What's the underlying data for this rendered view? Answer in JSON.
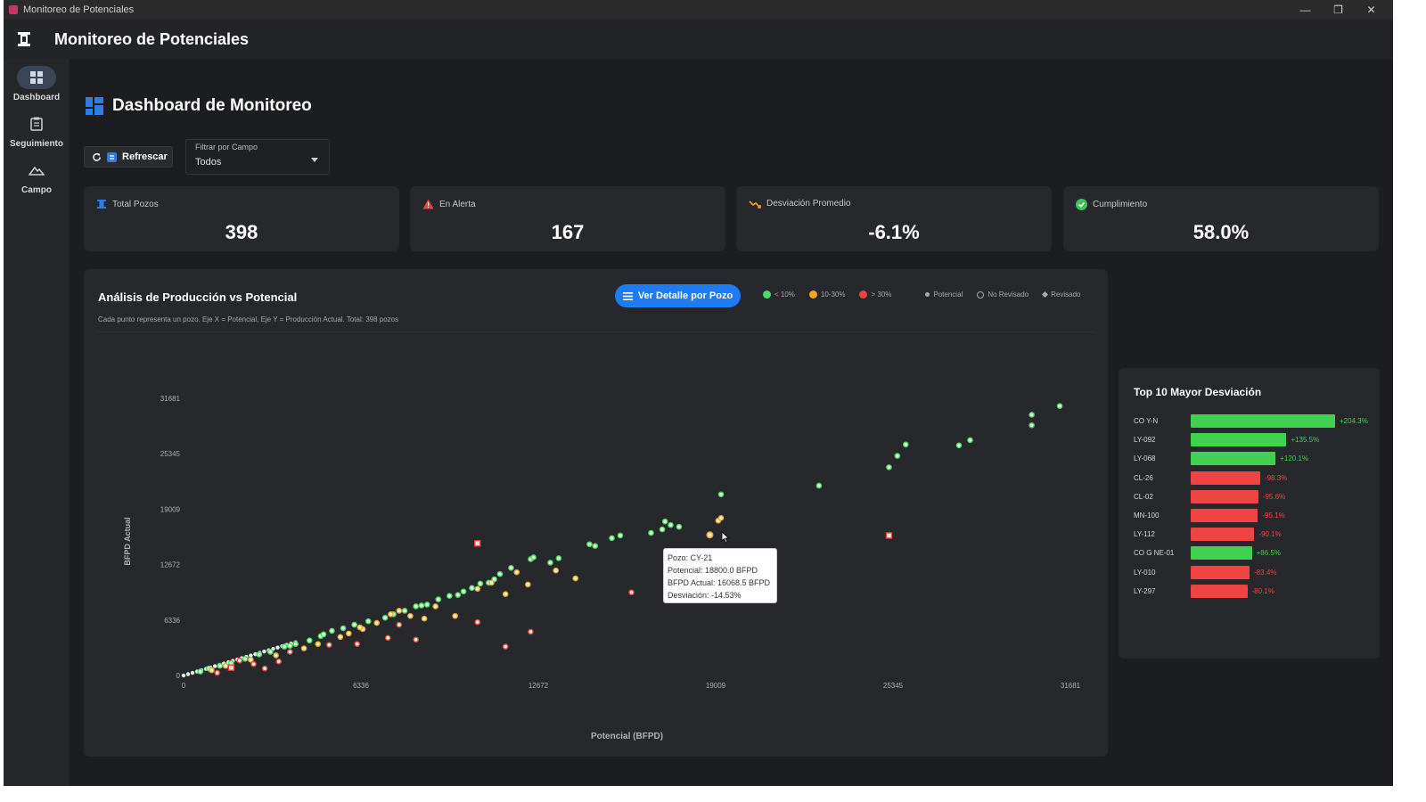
{
  "window": {
    "title": "Monitoreo de Potenciales",
    "controls": [
      "—",
      "❐",
      "✕"
    ]
  },
  "app": {
    "title": "Monitoreo de Potenciales"
  },
  "sidebar": {
    "items": [
      {
        "label": "Dashboard",
        "icon": "dashboard-icon"
      },
      {
        "label": "Seguimiento",
        "icon": "clipboard-icon"
      },
      {
        "label": "Campo",
        "icon": "mountain-icon"
      }
    ]
  },
  "page": {
    "title": "Dashboard de Monitoreo"
  },
  "toolbar": {
    "refresh_label": "Refrescar",
    "filter_label": "Filtrar por Campo",
    "filter_value": "Todos"
  },
  "stats": [
    {
      "label": "Total Pozos",
      "value": "398",
      "icon": "well-icon",
      "color": "#2f7de1"
    },
    {
      "label": "En Alerta",
      "value": "167",
      "icon": "warning-icon",
      "color": "#e64545"
    },
    {
      "label": "Desviación Promedio",
      "value": "-6.1%",
      "icon": "trend-down-icon",
      "color": "#f0a020"
    },
    {
      "label": "Cumplimiento",
      "value": "58.0%",
      "icon": "check-circle-icon",
      "color": "#3cc35a"
    }
  ],
  "chart_panel": {
    "title": "Análisis de Producción vs Potencial",
    "subtitle": "Cada punto representa un pozo. Eje X = Potencial, Eje Y = Producción Actual. Total: 398 pozos",
    "detail_button": "Ver Detalle por Pozo",
    "legend": {
      "low": "< 10%",
      "mid": "10-30%",
      "high": "> 30%",
      "potencial": "Potencial",
      "no_revisado": "No Revisado",
      "revisado": "Revisado"
    },
    "colors": {
      "green": "#4cd964",
      "orange": "#f5a623",
      "red": "#ef4444",
      "pale": "#d9f5d9",
      "grid": "#2b2c30",
      "axis_text": "#b0b0b0"
    }
  },
  "chart_data": {
    "type": "scatter",
    "xlabel": "Potencial (BFPD)",
    "ylabel": "BFPD Actual",
    "xlim": [
      0,
      31681
    ],
    "ylim": [
      0,
      31681
    ],
    "xticks": [
      "0",
      "6336",
      "12672",
      "19009",
      "25345",
      "31681"
    ],
    "yticks": [
      "0",
      "6336",
      "12672",
      "19009",
      "25345",
      "31681"
    ],
    "series": [
      {
        "name": "< 10%",
        "color": "#4cd964",
        "points": [
          [
            600,
            450
          ],
          [
            900,
            800
          ],
          [
            1300,
            1100
          ],
          [
            1700,
            1400
          ],
          [
            2200,
            1900
          ],
          [
            2700,
            2400
          ],
          [
            3100,
            2700
          ],
          [
            3600,
            3300
          ],
          [
            4000,
            3600
          ],
          [
            4500,
            4000
          ],
          [
            4900,
            4500
          ],
          [
            5300,
            5100
          ],
          [
            5700,
            5400
          ],
          [
            6100,
            5800
          ],
          [
            6600,
            6200
          ],
          [
            7200,
            6600
          ],
          [
            7900,
            7400
          ],
          [
            8300,
            7900
          ],
          [
            8700,
            8100
          ],
          [
            9100,
            8700
          ],
          [
            9500,
            9100
          ],
          [
            10000,
            9600
          ],
          [
            10300,
            10000
          ],
          [
            10600,
            10500
          ],
          [
            11300,
            11600
          ],
          [
            11700,
            12300
          ],
          [
            12400,
            13300
          ],
          [
            12500,
            13500
          ],
          [
            13100,
            12900
          ],
          [
            13400,
            13400
          ],
          [
            14500,
            15000
          ],
          [
            14700,
            14800
          ],
          [
            15300,
            15700
          ],
          [
            15600,
            16000
          ],
          [
            16700,
            16300
          ],
          [
            17100,
            16700
          ],
          [
            17400,
            17200
          ],
          [
            17700,
            17000
          ],
          [
            17200,
            17600
          ],
          [
            19200,
            20700
          ],
          [
            22700,
            21700
          ],
          [
            25200,
            23800
          ],
          [
            25500,
            25100
          ],
          [
            25800,
            26400
          ],
          [
            27700,
            26300
          ],
          [
            28100,
            26900
          ],
          [
            30300,
            29800
          ],
          [
            30300,
            28600
          ],
          [
            31300,
            30800
          ],
          [
            7500,
            7000
          ],
          [
            8500,
            8000
          ],
          [
            9800,
            9200
          ],
          [
            10900,
            10600
          ],
          [
            11100,
            11000
          ],
          [
            3800,
            3400
          ],
          [
            5000,
            4700
          ]
        ]
      },
      {
        "name": "10-30%",
        "color": "#f5a623",
        "points": [
          [
            1000,
            600
          ],
          [
            1500,
            1100
          ],
          [
            2400,
            1800
          ],
          [
            3300,
            2300
          ],
          [
            4300,
            3100
          ],
          [
            4800,
            3600
          ],
          [
            5600,
            4400
          ],
          [
            6400,
            5300
          ],
          [
            6900,
            6000
          ],
          [
            7400,
            7000
          ],
          [
            7700,
            7400
          ],
          [
            8100,
            6800
          ],
          [
            8600,
            6500
          ],
          [
            9000,
            7900
          ],
          [
            9700,
            6800
          ],
          [
            10500,
            9900
          ],
          [
            11000,
            10600
          ],
          [
            11500,
            9300
          ],
          [
            11900,
            11800
          ],
          [
            12300,
            10400
          ],
          [
            13300,
            12000
          ],
          [
            14000,
            11100
          ],
          [
            19100,
            17700
          ],
          [
            19200,
            18000
          ],
          [
            5900,
            4800
          ],
          [
            6300,
            5500
          ]
        ]
      },
      {
        "name": "> 30%",
        "color": "#ef4444",
        "points": [
          [
            1200,
            300
          ],
          [
            1700,
            900
          ],
          [
            2000,
            1700
          ],
          [
            2500,
            1300
          ],
          [
            2900,
            800
          ],
          [
            3400,
            1600
          ],
          [
            3800,
            2700
          ],
          [
            5200,
            3500
          ],
          [
            6200,
            3600
          ],
          [
            7300,
            4300
          ],
          [
            7700,
            5800
          ],
          [
            8300,
            4100
          ],
          [
            10500,
            6100
          ],
          [
            10500,
            15100
          ],
          [
            11500,
            3300
          ],
          [
            12400,
            5000
          ],
          [
            16000,
            9500
          ],
          [
            25200,
            16000
          ]
        ]
      }
    ],
    "highlight": {
      "pozo": "CY-21",
      "x": 18800.0,
      "y": 16068.5
    },
    "tooltip": [
      "Pozo: CY-21",
      "Potencial: 18800.0 BFPD",
      "BFPD Actual: 16068.5 BFPD",
      "Desviación: -14.53%"
    ]
  },
  "top10": {
    "title": "Top 10 Mayor Desviación",
    "max_abs": 204.3,
    "items": [
      {
        "name": "CO Y-N",
        "value": 204.3,
        "label": "+204.3%"
      },
      {
        "name": "LY-092",
        "value": 135.5,
        "label": "+135.5%"
      },
      {
        "name": "LY-068",
        "value": 120.1,
        "label": "+120.1%"
      },
      {
        "name": "CL-26",
        "value": -98.3,
        "label": "-98.3%"
      },
      {
        "name": "CL-02",
        "value": -95.6,
        "label": "-95.6%"
      },
      {
        "name": "MN-100",
        "value": -95.1,
        "label": "-95.1%"
      },
      {
        "name": "LY-112",
        "value": -90.1,
        "label": "-90.1%"
      },
      {
        "name": "CO G NE-01",
        "value": 86.5,
        "label": "+86.5%"
      },
      {
        "name": "LY-010",
        "value": -83.4,
        "label": "-83.4%"
      },
      {
        "name": "LY-297",
        "value": -80.1,
        "label": "-80.1%"
      }
    ]
  }
}
